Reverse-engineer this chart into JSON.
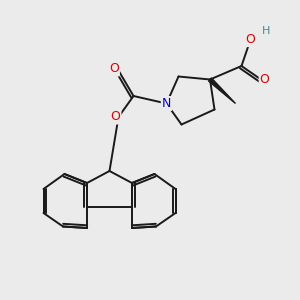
{
  "background_color": "#ebebeb",
  "bond_color": "#1a1a1a",
  "bond_width": 1.4,
  "atom_colors": {
    "O": "#e00000",
    "N": "#0000dd",
    "C": "#1a1a1a",
    "H": "#4a8888"
  }
}
